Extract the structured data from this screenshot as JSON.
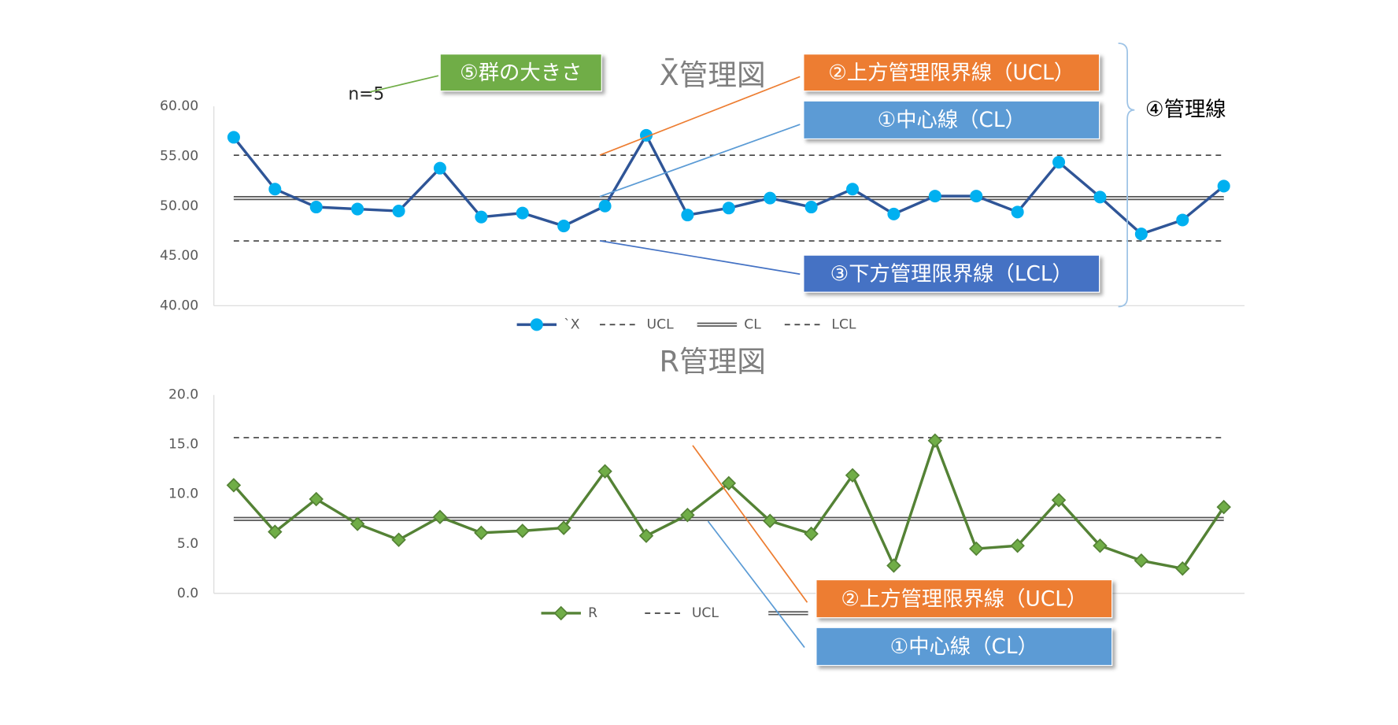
{
  "chart_data": [
    {
      "type": "line",
      "title": "X̄管理図",
      "ylim": [
        40,
        60
      ],
      "yticks": [
        {
          "value": 40,
          "label": "40.00"
        },
        {
          "value": 45,
          "label": "45.00"
        },
        {
          "value": 50,
          "label": "50.00"
        },
        {
          "value": 55,
          "label": "55.00"
        },
        {
          "value": 60,
          "label": "60.00"
        }
      ],
      "grid": false,
      "series": [
        {
          "name": "`X",
          "color": "#2f5597",
          "marker": "circle",
          "marker_color": "#00b0f0",
          "values": [
            56.9,
            51.7,
            49.9,
            49.7,
            49.5,
            53.8,
            48.9,
            49.3,
            48.0,
            50.0,
            57.1,
            49.1,
            49.8,
            50.8,
            49.9,
            51.7,
            49.2,
            51.0,
            51.0,
            49.4,
            54.4,
            50.9,
            47.2,
            48.6,
            52.0
          ]
        }
      ],
      "limits": [
        {
          "name": "UCL",
          "value": 55.1,
          "style": "dashed"
        },
        {
          "name": "CL",
          "value": 50.8,
          "style": "double"
        },
        {
          "name": "LCL",
          "value": 46.5,
          "style": "dashed"
        }
      ]
    },
    {
      "type": "line",
      "title": "R管理図",
      "ylim": [
        0,
        20
      ],
      "yticks": [
        {
          "value": 0,
          "label": "0.0"
        },
        {
          "value": 5,
          "label": "5.0"
        },
        {
          "value": 10,
          "label": "10.0"
        },
        {
          "value": 15,
          "label": "15.0"
        },
        {
          "value": 20,
          "label": "20.0"
        }
      ],
      "grid": false,
      "series": [
        {
          "name": "R",
          "color": "#548235",
          "marker": "diamond",
          "marker_color": "#70ad47",
          "values": [
            10.9,
            6.2,
            9.5,
            7.0,
            5.4,
            7.7,
            6.1,
            6.3,
            6.6,
            12.3,
            5.8,
            7.9,
            11.1,
            7.3,
            6.0,
            11.9,
            2.8,
            15.4,
            4.5,
            4.8,
            9.4,
            4.8,
            3.3,
            2.5,
            8.7
          ]
        }
      ],
      "limits": [
        {
          "name": "UCL",
          "value": 15.7,
          "style": "dashed"
        },
        {
          "name": "CL",
          "value": 7.5,
          "style": "double"
        }
      ]
    }
  ],
  "annotations": {
    "n_label": "n=5",
    "bracket_label": "④管理線",
    "callouts": [
      {
        "text": "⑤群の大きさ",
        "color": "#70ad47"
      },
      {
        "text": "②上方管理限界線（UCL）",
        "color": "#ed7d31"
      },
      {
        "text": "①中心線（CL）",
        "color": "#5b9bd5"
      },
      {
        "text": "③下方管理限界線（LCL）",
        "color": "#4472c4"
      },
      {
        "text": "②上方管理限界線（UCL）",
        "color": "#ed7d31"
      },
      {
        "text": "①中心線（CL）",
        "color": "#5b9bd5"
      }
    ]
  }
}
